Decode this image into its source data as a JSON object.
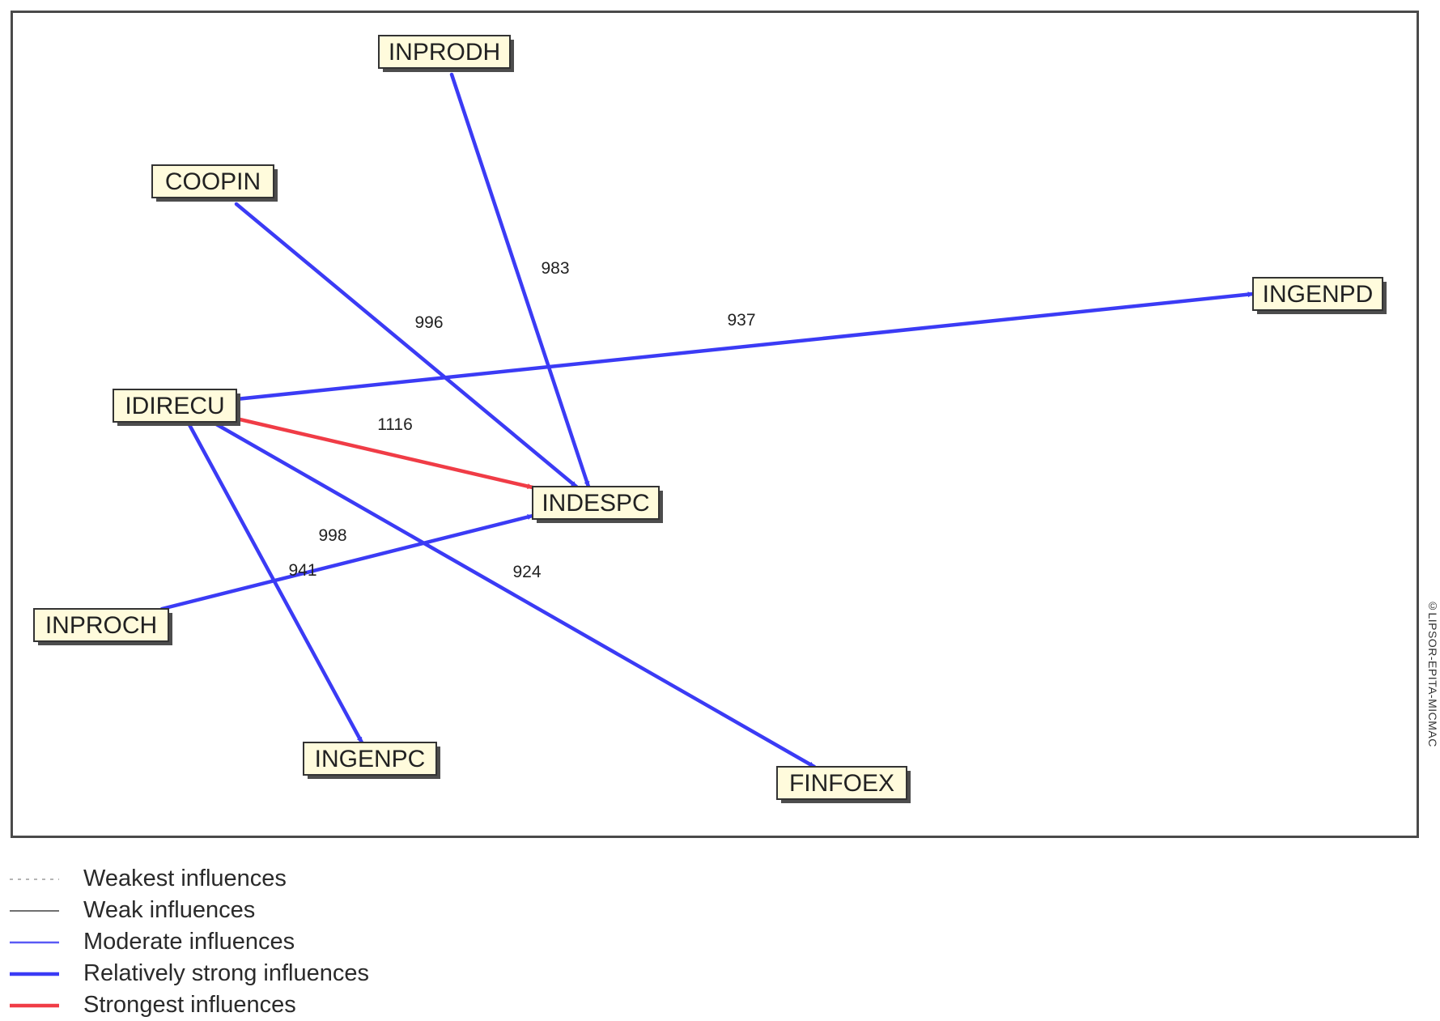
{
  "nodes": [
    {
      "id": "INPRODH",
      "label": "INPRODH"
    },
    {
      "id": "COOPIN",
      "label": "COOPIN"
    },
    {
      "id": "INGENPD",
      "label": "INGENPD"
    },
    {
      "id": "IDIRECU",
      "label": "IDIRECU"
    },
    {
      "id": "INDESPC",
      "label": "INDESPC"
    },
    {
      "id": "INPROCH",
      "label": "INPROCH"
    },
    {
      "id": "INGENPC",
      "label": "INGENPC"
    },
    {
      "id": "FINFOEX",
      "label": "FINFOEX"
    }
  ],
  "edges": [
    {
      "from": "INPRODH",
      "to": "INDESPC",
      "value": "983",
      "strength": "relatively-strong"
    },
    {
      "from": "COOPIN",
      "to": "INDESPC",
      "value": "996",
      "strength": "relatively-strong"
    },
    {
      "from": "IDIRECU",
      "to": "INGENPD",
      "value": "937",
      "strength": "relatively-strong"
    },
    {
      "from": "IDIRECU",
      "to": "INDESPC",
      "value": "1116",
      "strength": "strongest"
    },
    {
      "from": "INPROCH",
      "to": "INDESPC",
      "value": "998",
      "strength": "relatively-strong"
    },
    {
      "from": "IDIRECU",
      "to": "INGENPC",
      "value": "941",
      "strength": "relatively-strong"
    },
    {
      "from": "IDIRECU",
      "to": "FINFOEX",
      "value": "924",
      "strength": "relatively-strong"
    }
  ],
  "colors": {
    "relatively-strong": "#3b3bf5",
    "strongest": "#f03c46",
    "moderate": "#5a5af5",
    "weak": "#707070",
    "weakest": "#b5b5b5"
  },
  "watermark": "©LIPSOR-EPITA-MICMAC",
  "legend": [
    {
      "key": "weakest",
      "label": "Weakest influences"
    },
    {
      "key": "weak",
      "label": "Weak influences"
    },
    {
      "key": "moderate",
      "label": "Moderate influences"
    },
    {
      "key": "relatively-strong",
      "label": "Relatively strong influences"
    },
    {
      "key": "strongest",
      "label": "Strongest influences"
    }
  ]
}
